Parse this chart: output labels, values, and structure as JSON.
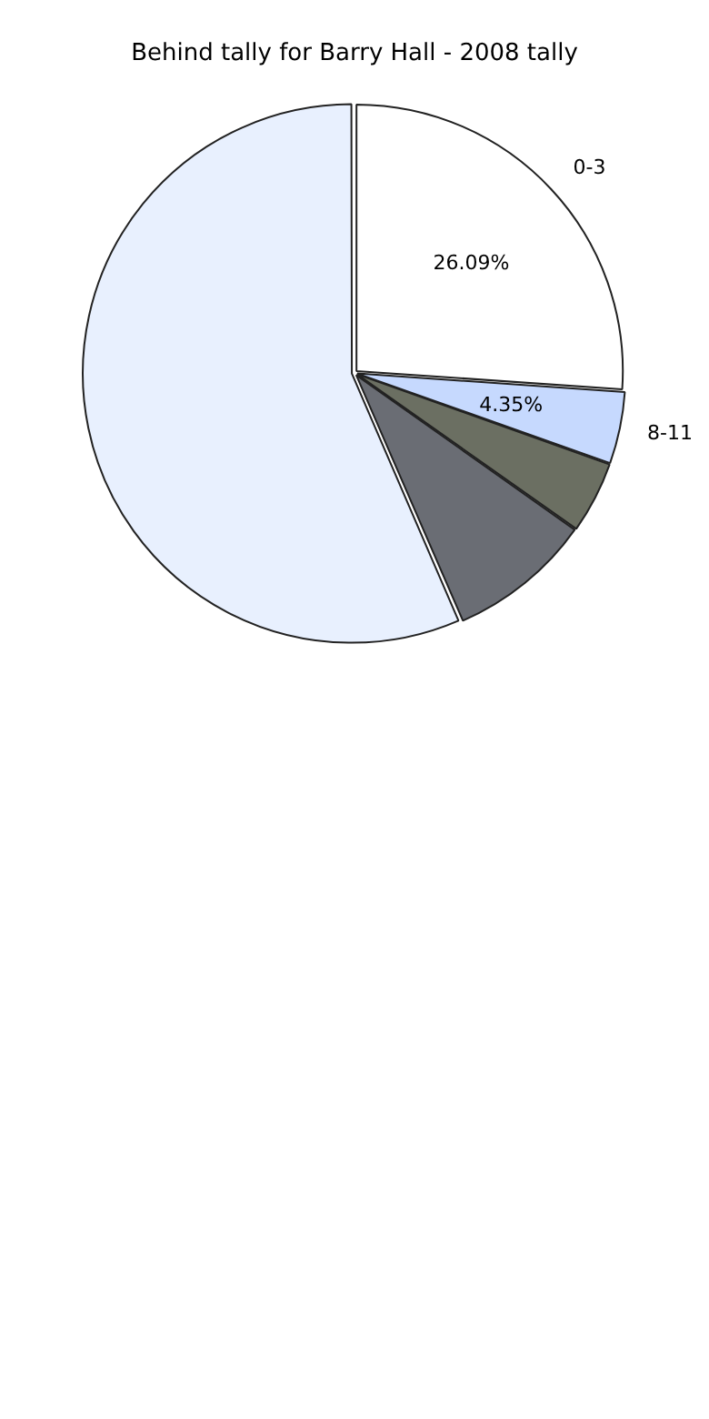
{
  "chart_data": {
    "type": "pie",
    "title": "Behind tally for Barry Hall - 2008 tally",
    "categories": [
      "0-3",
      "8-11",
      null,
      null,
      null
    ],
    "values": [
      26.09,
      4.35,
      4.35,
      8.7,
      56.52
    ],
    "value_labels": [
      "26.09%",
      "4.35%",
      null,
      null,
      null
    ],
    "colors": [
      "#ffffff",
      "#c6d9fe",
      "#6b6f62",
      "#6a6d74",
      "#e8f0fe"
    ]
  }
}
